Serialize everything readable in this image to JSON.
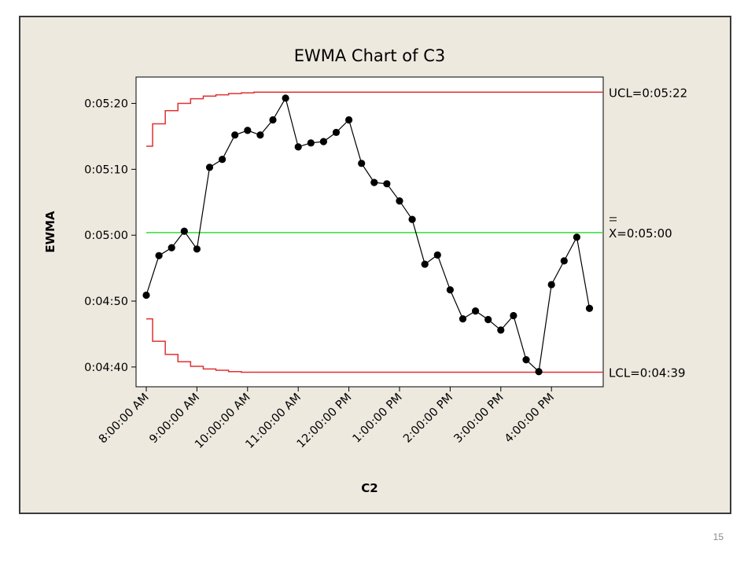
{
  "chart_data": {
    "type": "line",
    "title": "EWMA Chart of C3",
    "xlabel": "C2",
    "ylabel": "EWMA",
    "x_tick_labels": [
      "8:00:00 AM",
      "9:00:00 AM",
      "10:00:00 AM",
      "11:00:00 AM",
      "12:00:00 PM",
      "1:00:00 PM",
      "2:00:00 PM",
      "3:00:00 PM",
      "4:00:00 PM"
    ],
    "y_tick_labels": [
      "0:04:40",
      "0:04:50",
      "0:05:00",
      "0:05:10",
      "0:05:20"
    ],
    "ylim": [
      277,
      324
    ],
    "y_unit": "seconds",
    "ucl_label": "UCL=0:05:22",
    "center_label": "X=0:05:00",
    "lcl_label": "LCL=0:04:39",
    "ucl": 321.7,
    "center": 300.4,
    "lcl": 279.2,
    "series": [
      {
        "x": [
          "8:00 AM",
          "8:15 AM",
          "8:30 AM",
          "8:45 AM",
          "9:00 AM",
          "9:15 AM",
          "9:30 AM",
          "9:45 AM",
          "10:00 AM",
          "10:15 AM",
          "10:30 AM",
          "10:45 AM",
          "11:00 AM",
          "11:15 AM",
          "11:30 AM",
          "11:45 AM",
          "12:00 PM",
          "12:15 PM",
          "12:30 PM",
          "12:45 PM",
          "1:00 PM",
          "1:15 PM",
          "1:30 PM",
          "1:45 PM",
          "2:00 PM",
          "2:15 PM",
          "2:30 PM",
          "2:45 PM",
          "3:00 PM",
          "3:15 PM",
          "3:30 PM",
          "3:45 PM",
          "4:00 PM",
          "4:15 PM",
          "4:30 PM",
          "4:45 PM"
        ],
        "values": [
          290.9,
          296.9,
          298.1,
          300.6,
          297.9,
          310.3,
          311.5,
          315.2,
          315.9,
          315.2,
          317.5,
          320.8,
          313.4,
          314.0,
          314.2,
          315.6,
          317.5,
          310.9,
          308.0,
          307.8,
          305.2,
          302.4,
          295.6,
          297.0,
          291.7,
          287.3,
          288.5,
          287.2,
          285.6,
          287.8,
          281.1,
          279.3,
          292.5,
          296.1,
          299.7,
          288.9
        ]
      }
    ],
    "ucl_steps": [
      313.5,
      316.9,
      318.9,
      320.0,
      320.7,
      321.1,
      321.3,
      321.5,
      321.6,
      321.7
    ],
    "lcl_steps": [
      287.3,
      283.9,
      281.9,
      280.8,
      280.1,
      279.7,
      279.5,
      279.3,
      279.2,
      279.2
    ],
    "colors": {
      "series": "#000000",
      "limits": "#e03030",
      "center": "#33dd33",
      "background": "#ede9df"
    },
    "grid": false,
    "legend": "none"
  },
  "slide": {
    "number": "15"
  }
}
